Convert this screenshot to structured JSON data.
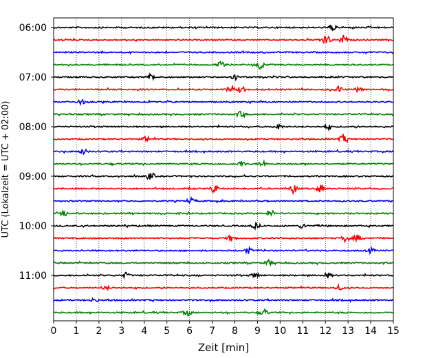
{
  "chart_data": {
    "type": "line",
    "title": "",
    "xlabel": "Zeit  [min]",
    "ylabel": "UTC (Lokalzeit = UTC + 02:00)",
    "xlim": [
      0,
      15
    ],
    "x_ticks": [
      0,
      1,
      2,
      3,
      4,
      5,
      6,
      7,
      8,
      9,
      10,
      11,
      12,
      13,
      14,
      15
    ],
    "y_tick_labels": [
      "06:00",
      "07:00",
      "08:00",
      "09:00",
      "10:00",
      "11:00"
    ],
    "grid": "vertical dotted",
    "legend": "none",
    "trace_colors": [
      "#000000",
      "#ff0000",
      "#0000ff",
      "#008000"
    ],
    "series": [
      {
        "start": "06:00",
        "color": "#000000",
        "events": [
          [
            12.3,
            0.55
          ]
        ]
      },
      {
        "start": "06:15",
        "color": "#ff0000",
        "events": [
          [
            11.9,
            0.5
          ],
          [
            12.8,
            0.8
          ],
          [
            12.1,
            0.5
          ]
        ]
      },
      {
        "start": "06:30",
        "color": "#0000ff",
        "events": []
      },
      {
        "start": "06:45",
        "color": "#008000",
        "events": [
          [
            7.4,
            0.55
          ],
          [
            9.1,
            0.7
          ]
        ]
      },
      {
        "start": "07:00",
        "color": "#000000",
        "events": [
          [
            4.3,
            0.55
          ],
          [
            8.0,
            0.45
          ]
        ]
      },
      {
        "start": "07:15",
        "color": "#ff0000",
        "events": [
          [
            7.8,
            0.45
          ],
          [
            8.3,
            0.6
          ],
          [
            12.6,
            0.55
          ],
          [
            13.5,
            0.5
          ]
        ]
      },
      {
        "start": "07:30",
        "color": "#0000ff",
        "events": [
          [
            1.2,
            0.4
          ]
        ]
      },
      {
        "start": "07:45",
        "color": "#008000",
        "events": [
          [
            8.3,
            0.55
          ]
        ]
      },
      {
        "start": "08:00",
        "color": "#000000",
        "events": [
          [
            9.9,
            0.55
          ],
          [
            12.1,
            0.5
          ]
        ]
      },
      {
        "start": "08:15",
        "color": "#ff0000",
        "events": [
          [
            12.8,
            0.75
          ],
          [
            4.1,
            0.45
          ]
        ]
      },
      {
        "start": "08:30",
        "color": "#0000ff",
        "events": [
          [
            1.3,
            0.45
          ]
        ]
      },
      {
        "start": "08:45",
        "color": "#008000",
        "events": [
          [
            8.3,
            0.45
          ],
          [
            9.2,
            0.6
          ]
        ]
      },
      {
        "start": "09:00",
        "color": "#000000",
        "events": [
          [
            4.3,
            0.6
          ]
        ]
      },
      {
        "start": "09:15",
        "color": "#ff0000",
        "events": [
          [
            7.1,
            0.75
          ],
          [
            10.6,
            0.65
          ],
          [
            11.8,
            0.75
          ]
        ]
      },
      {
        "start": "09:30",
        "color": "#0000ff",
        "events": [
          [
            6.1,
            0.4
          ]
        ]
      },
      {
        "start": "09:45",
        "color": "#008000",
        "events": [
          [
            9.6,
            0.5
          ],
          [
            0.5,
            0.4
          ]
        ]
      },
      {
        "start": "10:00",
        "color": "#000000",
        "events": [
          [
            8.9,
            0.45
          ],
          [
            11.0,
            0.4
          ]
        ]
      },
      {
        "start": "10:15",
        "color": "#ff0000",
        "events": [
          [
            7.8,
            0.45
          ],
          [
            12.9,
            0.6
          ],
          [
            13.4,
            0.5
          ]
        ]
      },
      {
        "start": "10:30",
        "color": "#0000ff",
        "events": [
          [
            8.6,
            0.45
          ],
          [
            14.0,
            0.4
          ]
        ]
      },
      {
        "start": "10:45",
        "color": "#008000",
        "events": [
          [
            9.5,
            0.45
          ]
        ]
      },
      {
        "start": "11:00",
        "color": "#000000",
        "events": [
          [
            8.9,
            0.55
          ],
          [
            3.2,
            0.45
          ],
          [
            12.1,
            0.4
          ]
        ]
      },
      {
        "start": "11:15",
        "color": "#ff0000",
        "events": [
          [
            12.6,
            0.45
          ],
          [
            2.3,
            0.35
          ]
        ]
      },
      {
        "start": "11:30",
        "color": "#0000ff",
        "events": [
          [
            1.8,
            0.35
          ]
        ]
      },
      {
        "start": "11:45",
        "color": "#008000",
        "events": [
          [
            5.9,
            0.5
          ],
          [
            9.3,
            0.55
          ]
        ]
      }
    ]
  }
}
